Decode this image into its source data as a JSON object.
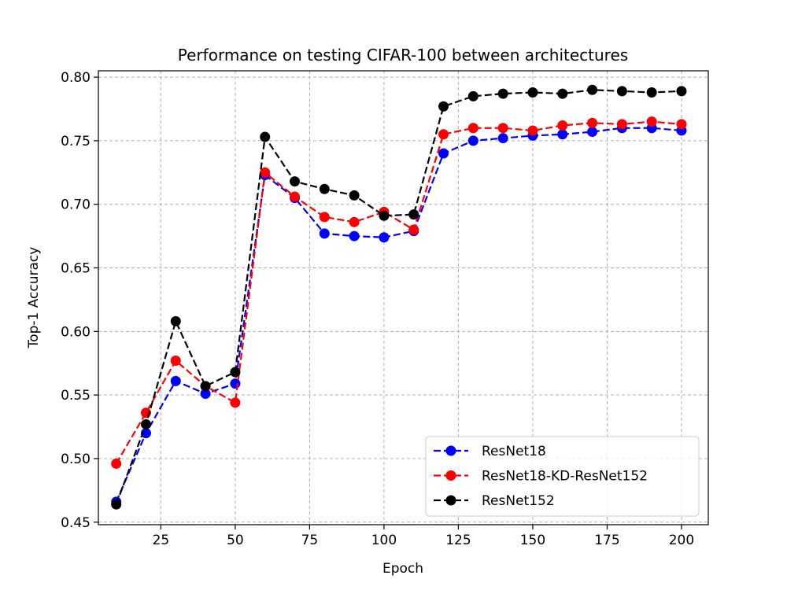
{
  "chart_data": {
    "type": "line",
    "title": "Performance on testing CIFAR-100 between architectures",
    "xlabel": "Epoch",
    "ylabel": "Top-1 Accuracy",
    "xlim": [
      4,
      209
    ],
    "ylim": [
      0.448,
      0.805
    ],
    "xticks": [
      25,
      50,
      75,
      100,
      125,
      150,
      175,
      200
    ],
    "yticks": [
      0.45,
      0.5,
      0.55,
      0.6,
      0.65,
      0.7,
      0.75,
      0.8
    ],
    "grid": true,
    "legend_position": "lower-right",
    "x": [
      10,
      20,
      30,
      40,
      50,
      60,
      70,
      80,
      90,
      100,
      110,
      120,
      130,
      140,
      150,
      160,
      170,
      180,
      190,
      200
    ],
    "series": [
      {
        "name": "ResNet18",
        "color": "#0000ff",
        "values": [
          0.466,
          0.52,
          0.561,
          0.551,
          0.559,
          0.723,
          0.705,
          0.677,
          0.675,
          0.674,
          0.679,
          0.74,
          0.75,
          0.752,
          0.754,
          0.755,
          0.757,
          0.76,
          0.76,
          0.758
        ]
      },
      {
        "name": "ResNet18-KD-ResNet152",
        "color": "#ff0000",
        "values": [
          0.496,
          0.536,
          0.577,
          0.557,
          0.544,
          0.725,
          0.706,
          0.69,
          0.686,
          0.694,
          0.68,
          0.755,
          0.76,
          0.76,
          0.758,
          0.762,
          0.764,
          0.763,
          0.765,
          0.763
        ]
      },
      {
        "name": "ResNet152",
        "color": "#000000",
        "values": [
          0.464,
          0.527,
          0.608,
          0.557,
          0.568,
          0.753,
          0.718,
          0.712,
          0.707,
          0.691,
          0.692,
          0.777,
          0.785,
          0.787,
          0.788,
          0.787,
          0.79,
          0.789,
          0.788,
          0.789
        ]
      }
    ]
  }
}
